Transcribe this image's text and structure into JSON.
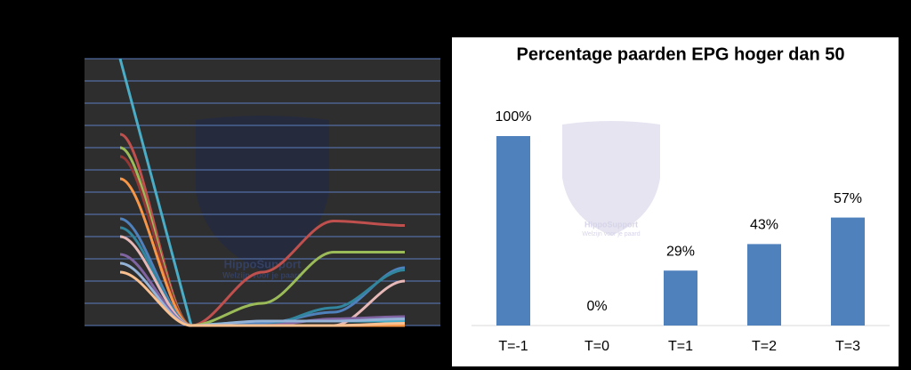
{
  "chart_data": [
    {
      "type": "line",
      "categories": [
        null,
        null,
        null,
        null,
        null
      ],
      "ylim": [
        0,
        12
      ],
      "yticks": [
        0,
        1,
        2,
        3,
        4,
        5,
        6,
        7,
        8,
        9,
        10,
        11,
        12
      ],
      "grid": true,
      "series": [
        {
          "color": "#4bacc6",
          "values": [
            12,
            0,
            0.2,
            0.2,
            0.2
          ]
        },
        {
          "color": "#c0504d",
          "values": [
            8.6,
            0,
            2.4,
            4.7,
            4.5
          ]
        },
        {
          "color": "#9bbb59",
          "values": [
            8.0,
            0,
            1.0,
            3.3,
            3.3
          ]
        },
        {
          "color": "#953735",
          "values": [
            7.6,
            0,
            0,
            0,
            0
          ]
        },
        {
          "color": "#f79646",
          "values": [
            6.6,
            0,
            0,
            0,
            0
          ]
        },
        {
          "color": "#4f81bd",
          "values": [
            4.8,
            0,
            0.1,
            0.6,
            2.6
          ]
        },
        {
          "color": "#31859c",
          "values": [
            4.4,
            0,
            0,
            0.8,
            2.5
          ]
        },
        {
          "color": "#e6b9b8",
          "values": [
            4.0,
            0,
            0,
            0,
            2.0
          ]
        },
        {
          "color": "#8064a2",
          "values": [
            3.2,
            0,
            0,
            0.3,
            0.4
          ]
        },
        {
          "color": "#95b3d7",
          "values": [
            2.8,
            0,
            0.2,
            0.2,
            0.3
          ]
        },
        {
          "color": "#fac090",
          "values": [
            2.4,
            0,
            0,
            0,
            0.1
          ]
        }
      ]
    },
    {
      "type": "bar",
      "title": "Percentage paarden EPG hoger dan 50",
      "categories": [
        "T=-1",
        "T=0",
        "T=1",
        "T=2",
        "T=3"
      ],
      "values": [
        100,
        0,
        29,
        43,
        57
      ],
      "value_labels": [
        "100%",
        "0%",
        "29%",
        "43%",
        "57%"
      ],
      "color": "#4f81bd",
      "ylim": [
        0,
        100
      ]
    }
  ],
  "watermark": {
    "name": "HippoSupport",
    "tagline": "Welzijn voor je paard"
  }
}
